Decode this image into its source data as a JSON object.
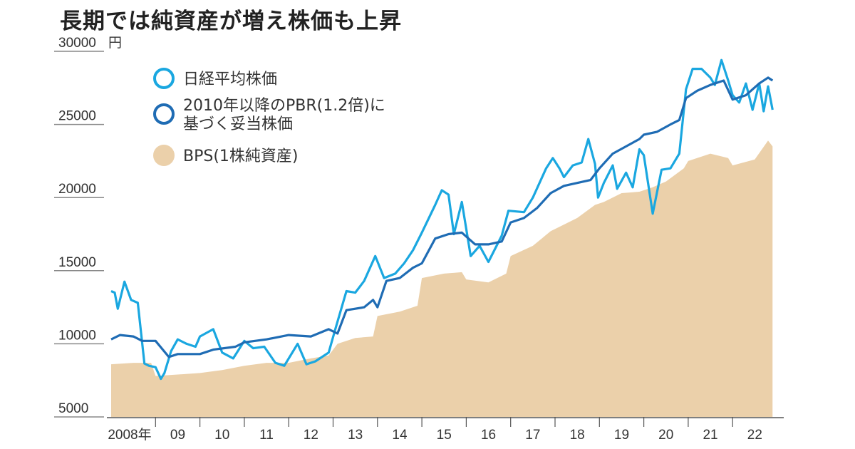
{
  "chart_data": {
    "type": "line",
    "title": "長期では純資産が増え株価も上昇",
    "ylabel_unit": "円",
    "ylim": [
      5000,
      30000
    ],
    "yticks": [
      5000,
      10000,
      15000,
      20000,
      25000,
      30000
    ],
    "ytick_labels": [
      "5000",
      "10000",
      "15000",
      "20000",
      "25000",
      "30000"
    ],
    "xlim": [
      2008.0,
      2023.0
    ],
    "xtick_labels": [
      "2008年",
      "09",
      "10",
      "11",
      "12",
      "13",
      "14",
      "15",
      "16",
      "17",
      "18",
      "19",
      "20",
      "21",
      "22"
    ],
    "legend_position": "top-left",
    "colors": {
      "nikkei": "#1aa7e0",
      "pbr": "#1f6cb4",
      "bps": "#ebd0aa"
    },
    "series": [
      {
        "name": "日経平均株価",
        "legend_lines": [
          "日経平均株価"
        ],
        "style": "line",
        "x": [
          2008.0,
          2008.08,
          2008.15,
          2008.3,
          2008.45,
          2008.6,
          2008.75,
          2008.85,
          2009.0,
          2009.12,
          2009.2,
          2009.35,
          2009.5,
          2009.7,
          2009.9,
          2010.0,
          2010.3,
          2010.5,
          2010.75,
          2011.0,
          2011.2,
          2011.45,
          2011.7,
          2011.9,
          2012.2,
          2012.4,
          2012.6,
          2012.9,
          2013.05,
          2013.3,
          2013.5,
          2013.7,
          2013.95,
          2014.15,
          2014.4,
          2014.6,
          2014.8,
          2015.0,
          2015.3,
          2015.45,
          2015.6,
          2015.72,
          2015.9,
          2016.1,
          2016.3,
          2016.5,
          2016.8,
          2016.95,
          2017.3,
          2017.5,
          2017.8,
          2017.95,
          2018.1,
          2018.2,
          2018.4,
          2018.6,
          2018.75,
          2018.9,
          2018.97,
          2019.1,
          2019.3,
          2019.4,
          2019.6,
          2019.75,
          2019.9,
          2020.0,
          2020.2,
          2020.4,
          2020.6,
          2020.8,
          2020.95,
          2021.1,
          2021.3,
          2021.5,
          2021.6,
          2021.75,
          2021.9,
          2022.0,
          2022.15,
          2022.3,
          2022.45,
          2022.6,
          2022.7,
          2022.8,
          2022.9
        ],
        "values": [
          13600,
          13500,
          12400,
          14250,
          13000,
          12800,
          8650,
          8500,
          8400,
          7600,
          8000,
          9500,
          10300,
          10000,
          9800,
          10500,
          11000,
          9400,
          9000,
          10200,
          9700,
          9800,
          8700,
          8500,
          10000,
          8600,
          8800,
          9400,
          11000,
          13600,
          13500,
          14300,
          16000,
          14500,
          14800,
          15500,
          16400,
          17600,
          19500,
          20500,
          20200,
          17500,
          19700,
          16000,
          16700,
          15600,
          17400,
          19100,
          19000,
          20000,
          22000,
          22700,
          22000,
          21400,
          22200,
          22400,
          24000,
          22300,
          20000,
          21000,
          22200,
          20600,
          21700,
          20700,
          23300,
          22900,
          18900,
          21900,
          22000,
          23000,
          27400,
          28800,
          28800,
          28200,
          27700,
          29400,
          28000,
          27000,
          26500,
          27800,
          26000,
          27800,
          25900,
          27600,
          26000
        ]
      },
      {
        "name": "2010年以降のPBR(1.2倍)に基づく妥当株価",
        "legend_lines": [
          "2010年以降のPBR(1.2倍)に",
          "基づく妥当株価"
        ],
        "style": "line",
        "x": [
          2008.0,
          2008.2,
          2008.5,
          2008.7,
          2009.0,
          2009.3,
          2009.5,
          2010.0,
          2010.3,
          2010.8,
          2011.0,
          2011.5,
          2012.0,
          2012.5,
          2012.9,
          2013.1,
          2013.3,
          2013.7,
          2013.9,
          2014.0,
          2014.2,
          2014.5,
          2014.8,
          2015.0,
          2015.3,
          2015.6,
          2015.9,
          2016.2,
          2016.5,
          2016.8,
          2017.0,
          2017.3,
          2017.6,
          2017.9,
          2018.2,
          2018.5,
          2018.8,
          2019.0,
          2019.3,
          2019.6,
          2019.9,
          2020.0,
          2020.3,
          2020.6,
          2020.8,
          2020.95,
          2021.2,
          2021.5,
          2021.8,
          2022.0,
          2022.3,
          2022.6,
          2022.8,
          2022.9
        ],
        "values": [
          10300,
          10600,
          10500,
          10200,
          10200,
          9100,
          9300,
          9300,
          9600,
          9800,
          10100,
          10300,
          10600,
          10500,
          11000,
          10700,
          12300,
          12500,
          13000,
          12500,
          14300,
          14500,
          15200,
          15500,
          17200,
          17500,
          17600,
          16800,
          16800,
          17000,
          18300,
          18600,
          19300,
          20300,
          20800,
          21000,
          21200,
          22000,
          23000,
          23500,
          24000,
          24300,
          24500,
          25000,
          25300,
          26800,
          27300,
          27700,
          28000,
          26700,
          27000,
          27800,
          28200,
          28000
        ]
      },
      {
        "name": "BPS(1株純資産)",
        "legend_lines": [
          "BPS(1株純資産)"
        ],
        "style": "area",
        "x": [
          2008.0,
          2008.5,
          2008.9,
          2009.0,
          2009.5,
          2010.0,
          2010.5,
          2011.0,
          2011.5,
          2012.0,
          2012.5,
          2012.9,
          2013.1,
          2013.5,
          2013.9,
          2014.0,
          2014.5,
          2014.9,
          2015.0,
          2015.5,
          2015.9,
          2016.0,
          2016.5,
          2016.9,
          2017.0,
          2017.5,
          2017.9,
          2018.1,
          2018.5,
          2018.9,
          2019.1,
          2019.5,
          2019.9,
          2020.2,
          2020.5,
          2020.9,
          2021.0,
          2021.5,
          2021.9,
          2022.0,
          2022.5,
          2022.8,
          2022.9
        ],
        "values": [
          8600,
          8700,
          8700,
          7800,
          7900,
          8000,
          8200,
          8500,
          8700,
          8700,
          9000,
          9200,
          10000,
          10400,
          10500,
          11900,
          12200,
          12600,
          14500,
          14800,
          14900,
          14400,
          14200,
          14800,
          16000,
          16700,
          17700,
          18000,
          18600,
          19500,
          19700,
          20300,
          20400,
          20700,
          21100,
          22000,
          22500,
          23000,
          22700,
          22200,
          22600,
          23900,
          23500
        ]
      }
    ]
  }
}
